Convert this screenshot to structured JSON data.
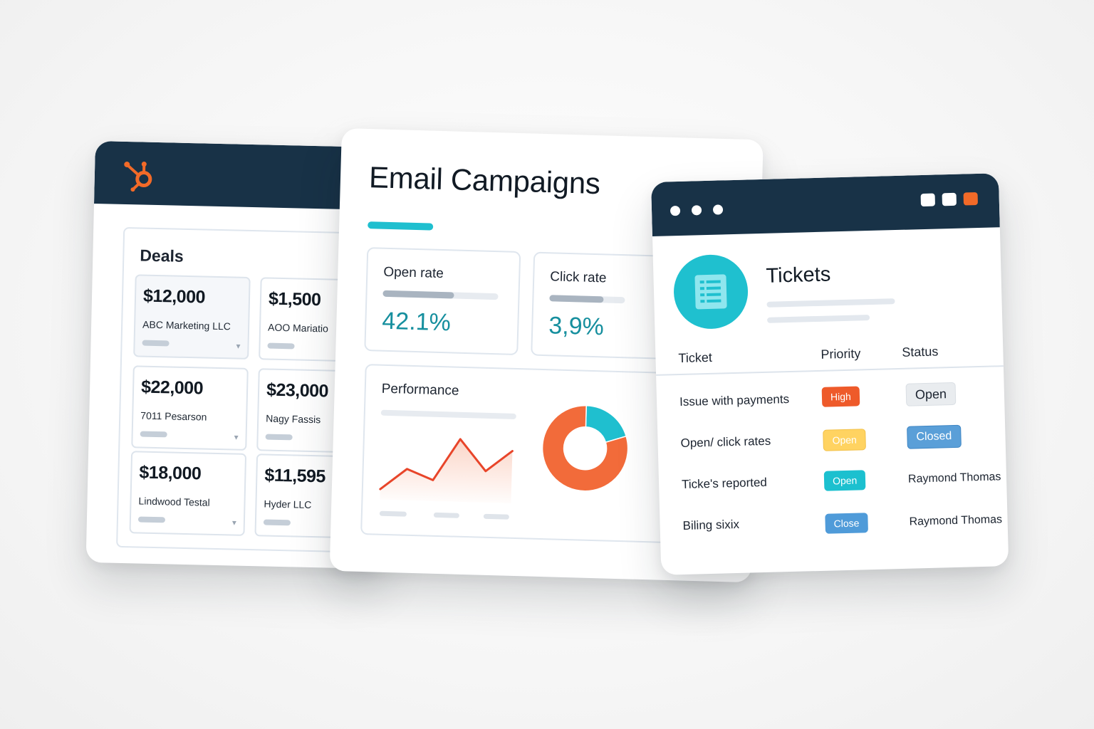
{
  "colors": {
    "navy": "#183247",
    "brand_orange": "#f26a28",
    "teal": "#1fc0cf",
    "metric_text": "#168f9e",
    "chart_line": "#e8452a",
    "donut_orange": "#f26b3a",
    "donut_teal": "#1fbfcf",
    "priority_high": "#ee5a2a",
    "priority_open_yellow": "#ffd361",
    "priority_open_teal": "#1cc0cf",
    "priority_close_blue": "#4f9bd9",
    "status_open_gray": "#e9ecef",
    "status_closed_blue": "#5a9fd8"
  },
  "deals": {
    "logo_icon": "hubspot-sprocket-icon",
    "title": "Deals",
    "items": [
      {
        "amount": "$12,000",
        "company": "ABC Marketing LLC"
      },
      {
        "amount": "$1,500",
        "company": "AOO Mariatio"
      },
      {
        "amount": "$22,000",
        "company": "7011 Pesarson"
      },
      {
        "amount": "$23,000",
        "company": "Nagy Fassis"
      },
      {
        "amount": "$18,000",
        "company": "Lindwood Testal"
      },
      {
        "amount": "$11,595",
        "company": "Hyder LLC"
      }
    ]
  },
  "email": {
    "title": "Email Campaigns",
    "metrics": [
      {
        "label": "Open rate",
        "value": "42.1%",
        "progress": 0.62
      },
      {
        "label": "Click rate",
        "value": "3,9%",
        "progress": 0.72
      }
    ],
    "performance": {
      "title": "Performance"
    }
  },
  "chart_data": [
    {
      "type": "line",
      "title": "Performance",
      "series": [
        {
          "values": [
            1,
            3,
            2,
            6,
            3,
            5
          ]
        }
      ]
    },
    {
      "type": "pie",
      "style": "donut",
      "values": [
        0.2,
        0.8
      ]
    }
  ],
  "tickets": {
    "window_icons": [
      "window-dot-icon",
      "window-dot-icon",
      "window-dot-icon"
    ],
    "icon": "ticket-list-icon",
    "title": "Tickets",
    "columns": [
      "Ticket",
      "Priority",
      "Status"
    ],
    "rows": [
      {
        "ticket": "Issue with payments",
        "priority": "High",
        "status": "Open"
      },
      {
        "ticket": "Open/ click rates",
        "priority": "Open",
        "status": "Closed"
      },
      {
        "ticket": "Ticke's reported",
        "priority": "Open",
        "status": "Raymond Thomas"
      },
      {
        "ticket": "Biling sixix",
        "priority": "Close",
        "status": "Raymond Thomas"
      }
    ]
  }
}
